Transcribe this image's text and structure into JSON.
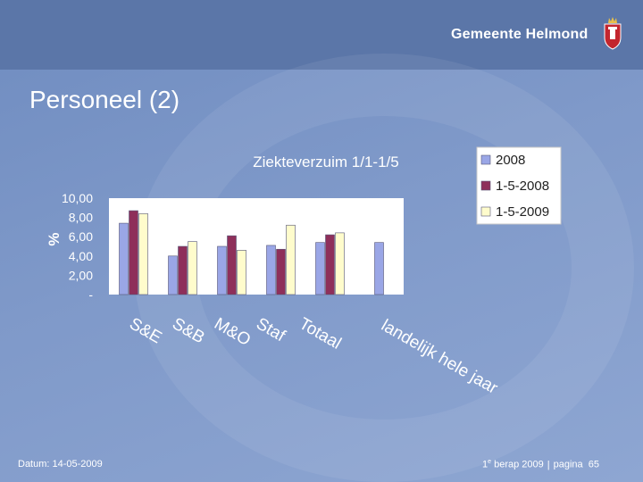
{
  "header": {
    "org_name": "Gemeente Helmond"
  },
  "slide": {
    "title": "Personeel (2)"
  },
  "footer": {
    "date": "Datum: 14-05-2009",
    "berap_num": "1",
    "berap_sup": "e",
    "berap_rest": " berap 2009",
    "separator": "|",
    "page_label": "pagina",
    "page_number": "65"
  },
  "colors": {
    "series": [
      "#9aa6e6",
      "#8e2f5a",
      "#fffccc"
    ],
    "plot_bg": "#ffffff"
  },
  "chart_data": {
    "type": "bar",
    "title": "Ziekteverzuim 1/1-1/5",
    "ylabel": "%",
    "xlabel": "",
    "ylim": [
      0,
      10
    ],
    "yticks": [
      "-",
      "2,00",
      "4,00",
      "6,00",
      "8,00",
      "10,00"
    ],
    "grid": false,
    "legend_position": "top-right",
    "categories": [
      "S&E",
      "S&B",
      "M&O",
      "Staf",
      "Totaal",
      "landelijk hele jaar"
    ],
    "series": [
      {
        "name": "2008",
        "values": [
          7.4,
          4.0,
          5.0,
          5.1,
          5.4,
          5.4
        ]
      },
      {
        "name": "1-5-2008",
        "values": [
          8.7,
          5.0,
          6.1,
          4.7,
          6.2,
          null
        ]
      },
      {
        "name": "1-5-2009",
        "values": [
          8.4,
          5.5,
          4.6,
          7.2,
          6.4,
          null
        ]
      }
    ]
  }
}
